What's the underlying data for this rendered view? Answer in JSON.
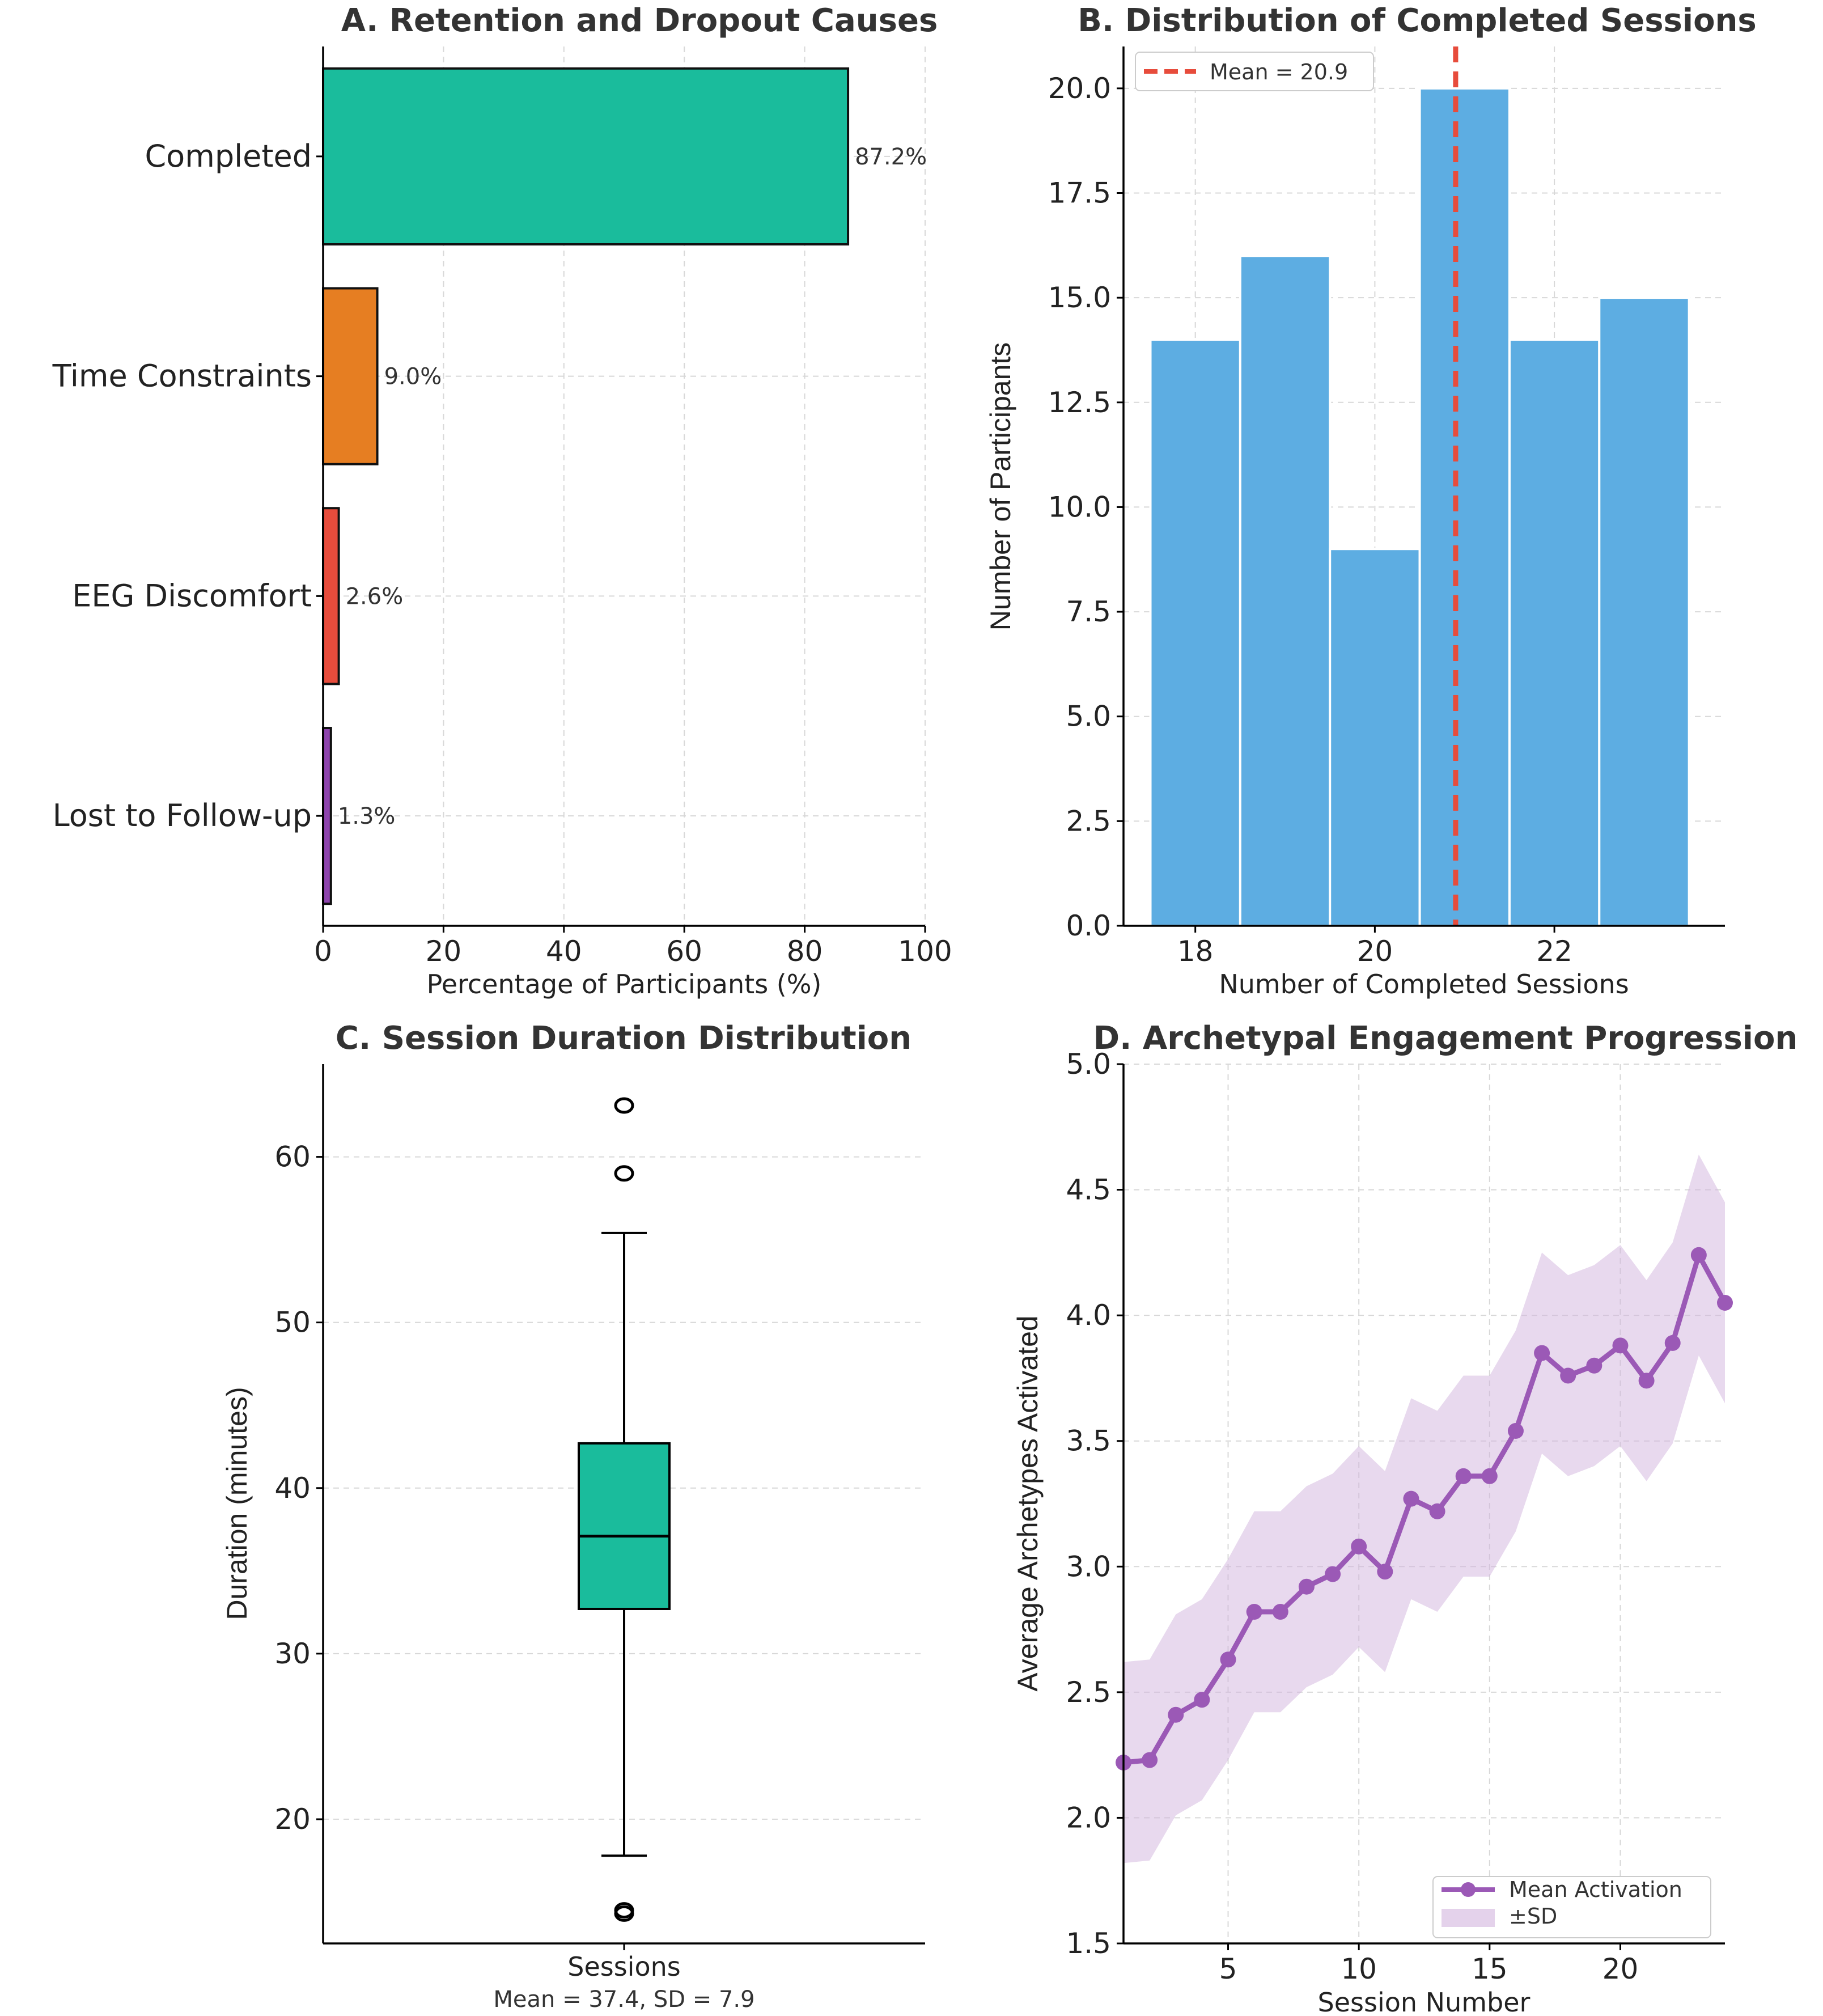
{
  "chart_data": [
    {
      "id": "A",
      "type": "bar",
      "orientation": "horizontal",
      "title": "A. Retention and Dropout Causes",
      "categories": [
        "Completed",
        "Time Constraints",
        "EEG Discomfort",
        "Lost to Follow-up"
      ],
      "values": [
        87.2,
        9.0,
        2.6,
        1.3
      ],
      "value_labels": [
        "87.2%",
        "9.0%",
        "2.6%",
        "1.3%"
      ],
      "colors": [
        "#1abc9c",
        "#e67e22",
        "#e74c3c",
        "#8e44ad"
      ],
      "xlabel": "Percentage of Participants (%)",
      "ylabel": "",
      "xlim": [
        0,
        100
      ],
      "xticks": [
        0,
        20,
        40,
        60,
        80,
        100
      ],
      "grid": true
    },
    {
      "id": "B",
      "type": "bar",
      "subtype": "histogram",
      "title": "B. Distribution of Completed Sessions",
      "bins": [
        18,
        19,
        20,
        21,
        22,
        23
      ],
      "values": [
        14,
        16,
        9,
        20,
        14,
        15
      ],
      "color": "#5dade2",
      "mean": 20.9,
      "legend": [
        "Mean = 20.9"
      ],
      "legend_location": "top-left",
      "mean_line_color": "#e74c3c",
      "xlabel": "Number of Completed Sessions",
      "ylabel": "Number of Participants",
      "xlim": [
        17.2,
        23.9
      ],
      "ylim": [
        0,
        21
      ],
      "xticks": [
        18,
        20,
        22
      ],
      "yticks": [
        0.0,
        2.5,
        5.0,
        7.5,
        10.0,
        12.5,
        15.0,
        17.5,
        20.0
      ],
      "ytick_labels": [
        "0.0",
        "2.5",
        "5.0",
        "7.5",
        "10.0",
        "12.5",
        "15.0",
        "17.5",
        "20.0"
      ],
      "grid": true
    },
    {
      "id": "C",
      "type": "box",
      "title": "C. Session Duration Distribution",
      "category": "Sessions",
      "subtitle_note": "Mean = 37.4, SD = 7.9",
      "median": 37.1,
      "q1": 32.7,
      "q3": 42.7,
      "whisker_low": 17.8,
      "whisker_high": 55.4,
      "outliers": [
        63.1,
        59.0,
        14.5,
        14.3
      ],
      "color": "#1abc9c",
      "xlabel": "Sessions",
      "ylabel": "Duration (minutes)",
      "ylim": [
        12.5,
        65.6
      ],
      "yticks": [
        20,
        30,
        40,
        50,
        60
      ],
      "grid": true
    },
    {
      "id": "D",
      "type": "line",
      "title": "D. Archetypal Engagement Progression",
      "x": [
        1,
        2,
        3,
        4,
        5,
        6,
        7,
        8,
        9,
        10,
        11,
        12,
        13,
        14,
        15,
        16,
        17,
        18,
        19,
        20,
        21,
        22,
        23,
        24
      ],
      "series": [
        {
          "name": "Mean Activation",
          "color": "#9b59b6",
          "values": [
            2.22,
            2.23,
            2.41,
            2.47,
            2.63,
            2.82,
            2.82,
            2.92,
            2.97,
            3.08,
            2.98,
            3.27,
            3.22,
            3.36,
            3.36,
            3.54,
            3.85,
            3.76,
            3.8,
            3.88,
            3.74,
            3.89,
            4.24,
            4.05
          ]
        }
      ],
      "band": {
        "name": "±SD",
        "color": "#d2b4de",
        "lower": [
          1.82,
          1.83,
          2.01,
          2.07,
          2.23,
          2.42,
          2.42,
          2.52,
          2.57,
          2.68,
          2.58,
          2.87,
          2.82,
          2.96,
          2.96,
          3.14,
          3.45,
          3.36,
          3.4,
          3.48,
          3.34,
          3.49,
          3.84,
          3.65
        ],
        "upper": [
          2.62,
          2.63,
          2.81,
          2.87,
          3.03,
          3.22,
          3.22,
          3.32,
          3.37,
          3.48,
          3.38,
          3.67,
          3.62,
          3.76,
          3.76,
          3.94,
          4.25,
          4.16,
          4.2,
          4.28,
          4.14,
          4.29,
          4.64,
          4.45
        ]
      },
      "legend": [
        "Mean Activation",
        "±SD"
      ],
      "legend_location": "bottom-right",
      "xlabel": "Session Number",
      "ylabel": "Average Archetypes Activated",
      "xlim": [
        1,
        24
      ],
      "ylim": [
        1.5,
        5.0
      ],
      "xticks": [
        5,
        10,
        15,
        20
      ],
      "yticks": [
        1.5,
        2.0,
        2.5,
        3.0,
        3.5,
        4.0,
        4.5,
        5.0
      ],
      "ytick_labels": [
        "1.5",
        "2.0",
        "2.5",
        "3.0",
        "3.5",
        "4.0",
        "4.5",
        "5.0"
      ],
      "grid": true
    }
  ]
}
